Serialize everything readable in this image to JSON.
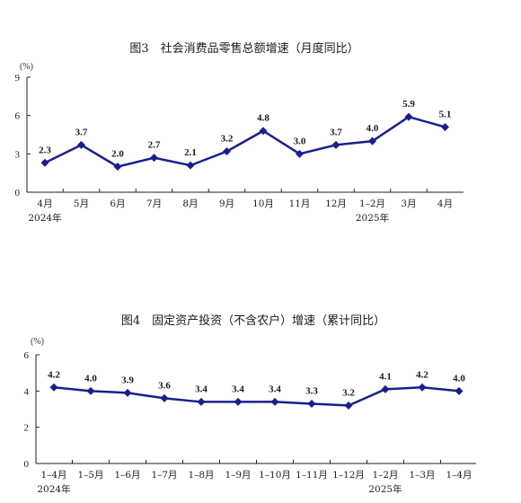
{
  "chart_data": [
    {
      "type": "line",
      "title": "图3　社会消费品零售总额增速（月度同比）",
      "unit": "(%)",
      "ylim": [
        0,
        9
      ],
      "yticks": [
        0,
        3,
        6,
        9
      ],
      "categories": [
        "4月",
        "5月",
        "6月",
        "7月",
        "8月",
        "9月",
        "10月",
        "11月",
        "12月",
        "1–2月",
        "3月",
        "4月"
      ],
      "year_labels": [
        {
          "index": 0,
          "text": "2024年"
        },
        {
          "index": 9,
          "text": "2025年"
        }
      ],
      "series": [
        {
          "values": [
            2.3,
            3.7,
            2.0,
            2.7,
            2.1,
            3.2,
            4.8,
            3.0,
            3.7,
            4.0,
            5.9,
            5.1
          ]
        }
      ],
      "data_labels": [
        "2.3",
        "3.7",
        "2.0",
        "2.7",
        "2.1",
        "3.2",
        "4.8",
        "3.0",
        "3.7",
        "4.0",
        "5.9",
        "5.1"
      ],
      "line_color": "#1a1f8c"
    },
    {
      "type": "line",
      "title": "图4　固定资产投资（不含农户）增速（累计同比）",
      "unit": "(%)",
      "ylim": [
        0,
        6
      ],
      "yticks": [
        0,
        2,
        4,
        6
      ],
      "categories": [
        "1–4月",
        "1–5月",
        "1–6月",
        "1–7月",
        "1–8月",
        "1–9月",
        "1–10月",
        "1–11月",
        "1–12月",
        "1–2月",
        "1–3月",
        "1–4月"
      ],
      "year_labels": [
        {
          "index": 0,
          "text": "2024年"
        },
        {
          "index": 9,
          "text": "2025年"
        }
      ],
      "series": [
        {
          "values": [
            4.2,
            4.0,
            3.9,
            3.6,
            3.4,
            3.4,
            3.4,
            3.3,
            3.2,
            4.1,
            4.2,
            4.0
          ]
        }
      ],
      "data_labels": [
        "4.2",
        "4.0",
        "3.9",
        "3.6",
        "3.4",
        "3.4",
        "3.4",
        "3.3",
        "3.2",
        "4.1",
        "4.2",
        "4.0"
      ],
      "line_color": "#1a1f8c"
    }
  ]
}
